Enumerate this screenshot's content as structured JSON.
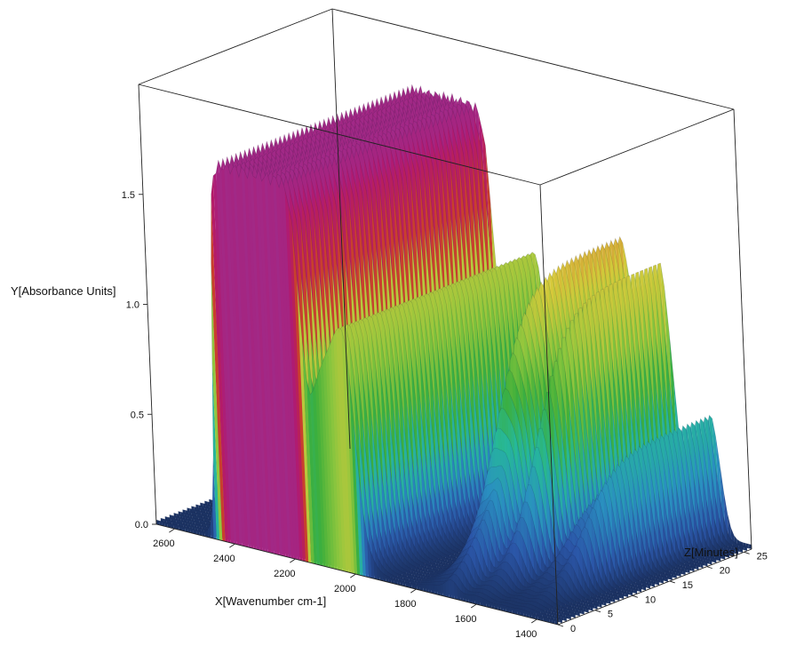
{
  "chart_data": {
    "type": "surface-3d",
    "axes": {
      "x": {
        "label": "X[Wavenumber cm-1]",
        "ticks": [
          2600,
          2400,
          2200,
          2000,
          1800,
          1600,
          1400
        ],
        "range": [
          2660,
          1330
        ]
      },
      "y": {
        "label": "Y[Absorbance Units]",
        "ticks": [
          0.0,
          0.5,
          1.0,
          1.5
        ],
        "tick_labels": [
          "0.0",
          "0.5",
          "1.0",
          "1.5"
        ],
        "range": [
          0,
          2.0
        ]
      },
      "z": {
        "label": "Z[Minutes]",
        "ticks": [
          0,
          5,
          10,
          15,
          20,
          25
        ],
        "range": [
          0,
          26
        ]
      }
    },
    "features": [
      {
        "name": "plateau",
        "x_from": 2450,
        "x_to": 2150,
        "max_absorbance": 1.72,
        "onset_minutes": 0
      },
      {
        "name": "shoulder",
        "x": 2050,
        "max_absorbance": 1.05
      },
      {
        "name": "band",
        "x": 1730,
        "max_absorbance": 1.3,
        "onset_minutes": 8
      },
      {
        "name": "band",
        "x": 1600,
        "max_absorbance": 1.25,
        "onset_minutes": 9
      },
      {
        "name": "band",
        "x": 1450,
        "max_absorbance": 0.6,
        "onset_minutes": 8
      }
    ],
    "colorscale": [
      "#1a2f5c",
      "#2b56a8",
      "#2a8fc0",
      "#26b89a",
      "#3cae3a",
      "#8cc63e",
      "#d6c93a",
      "#c8302c",
      "#b2196f",
      "#8a3fa8"
    ],
    "grid": false,
    "legend": "none"
  }
}
